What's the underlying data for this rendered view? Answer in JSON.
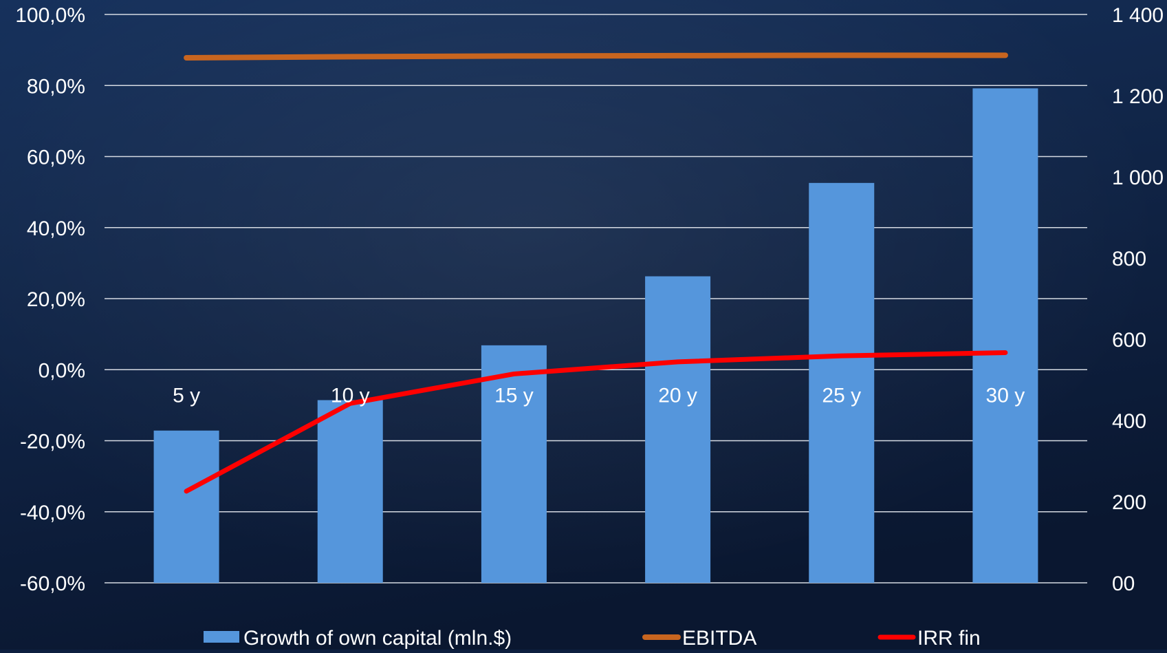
{
  "colors": {
    "background_top": "#16315c",
    "background_bottom": "#0a1730",
    "gridline": "#d6dbe3",
    "bars": "#5596dc",
    "ebitda": "#c8651f",
    "irr": "#ff0000",
    "text": "#ffffff"
  },
  "chart_data": {
    "type": "bar",
    "title": "",
    "categories": [
      "5 y",
      "10 y",
      "15 y",
      "20 y",
      "25 y",
      "30 y"
    ],
    "left_axis": {
      "ylim": [
        -60,
        100
      ],
      "ticks": [
        100,
        80,
        60,
        40,
        20,
        0,
        -20,
        -40,
        -60
      ],
      "tick_labels": [
        "100,0%",
        "80,0%",
        "60,0%",
        "40,0%",
        "20,0%",
        "0,0%",
        "-20,0%",
        "-40,0%",
        "-60,0%"
      ]
    },
    "right_axis": {
      "ylim": [
        0,
        1400
      ],
      "ticks": [
        1400,
        1200,
        1000,
        800,
        600,
        400,
        200,
        0
      ],
      "tick_labels": [
        "1 400",
        "1 200",
        "1 000",
        "800",
        "600",
        "400",
        "200",
        "00"
      ]
    },
    "series": [
      {
        "name": "Growth of own capital (mln.$)",
        "kind": "bar",
        "axis": "right",
        "values": [
          375,
          450,
          585,
          755,
          985,
          1218
        ]
      },
      {
        "name": "EBITDA",
        "kind": "line",
        "axis": "left",
        "values": [
          87.8,
          88.1,
          88.3,
          88.4,
          88.5,
          88.5
        ]
      },
      {
        "name": "IRR fin",
        "kind": "line",
        "axis": "left",
        "values": [
          -34.2,
          -9.5,
          -1.2,
          2.2,
          3.9,
          4.8
        ]
      }
    ],
    "legend": {
      "position": "bottom",
      "entries": [
        "Growth of own capital (mln.$)",
        "EBITDA",
        "IRR fin"
      ]
    },
    "grid": true
  }
}
